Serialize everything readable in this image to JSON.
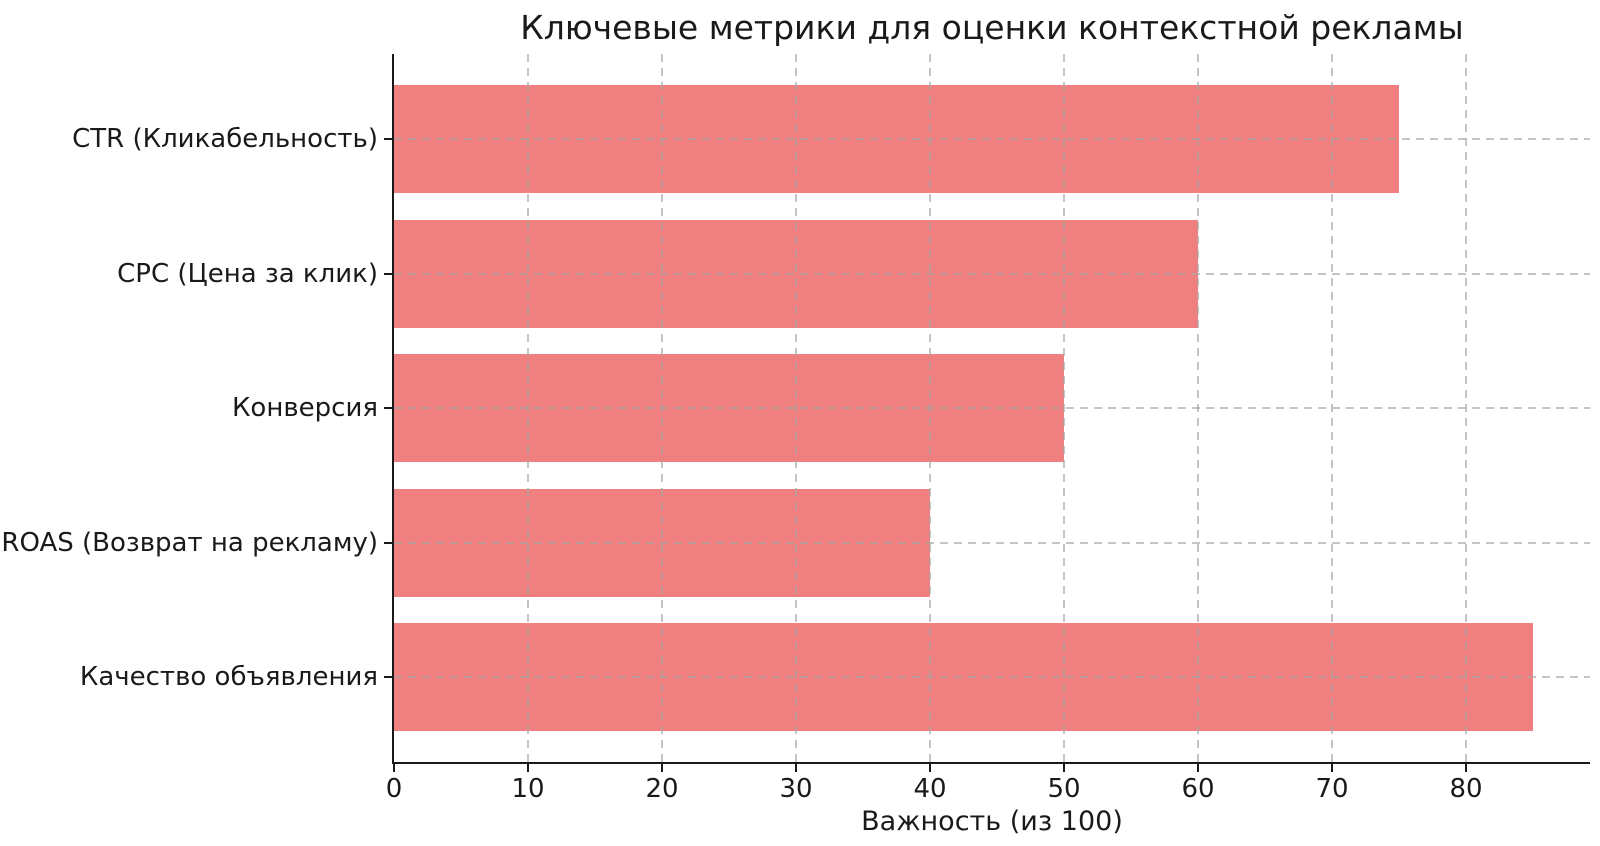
{
  "chart_data": {
    "type": "bar",
    "orientation": "horizontal",
    "title": "Ключевые метрики для оценки контекстной рекламы",
    "categories": [
      "CTR (Кликабельность)",
      "CPC (Цена за клик)",
      "Конверсия",
      "ROAS (Возврат на рекламу)",
      "Качество объявления"
    ],
    "values": [
      75,
      60,
      50,
      40,
      85
    ],
    "xlabel": "Важность (из 100)",
    "ylabel": "",
    "xlim": [
      0,
      89.25
    ],
    "xticks": [
      0,
      10,
      20,
      30,
      40,
      50,
      60,
      70,
      80
    ],
    "grid": true,
    "grid_style": "dashed",
    "legend": "none",
    "bar_color": "#f08080",
    "grid_color": "#a5a5a5",
    "axis_color": "#1a1a1a",
    "background_color": "#ffffff"
  }
}
